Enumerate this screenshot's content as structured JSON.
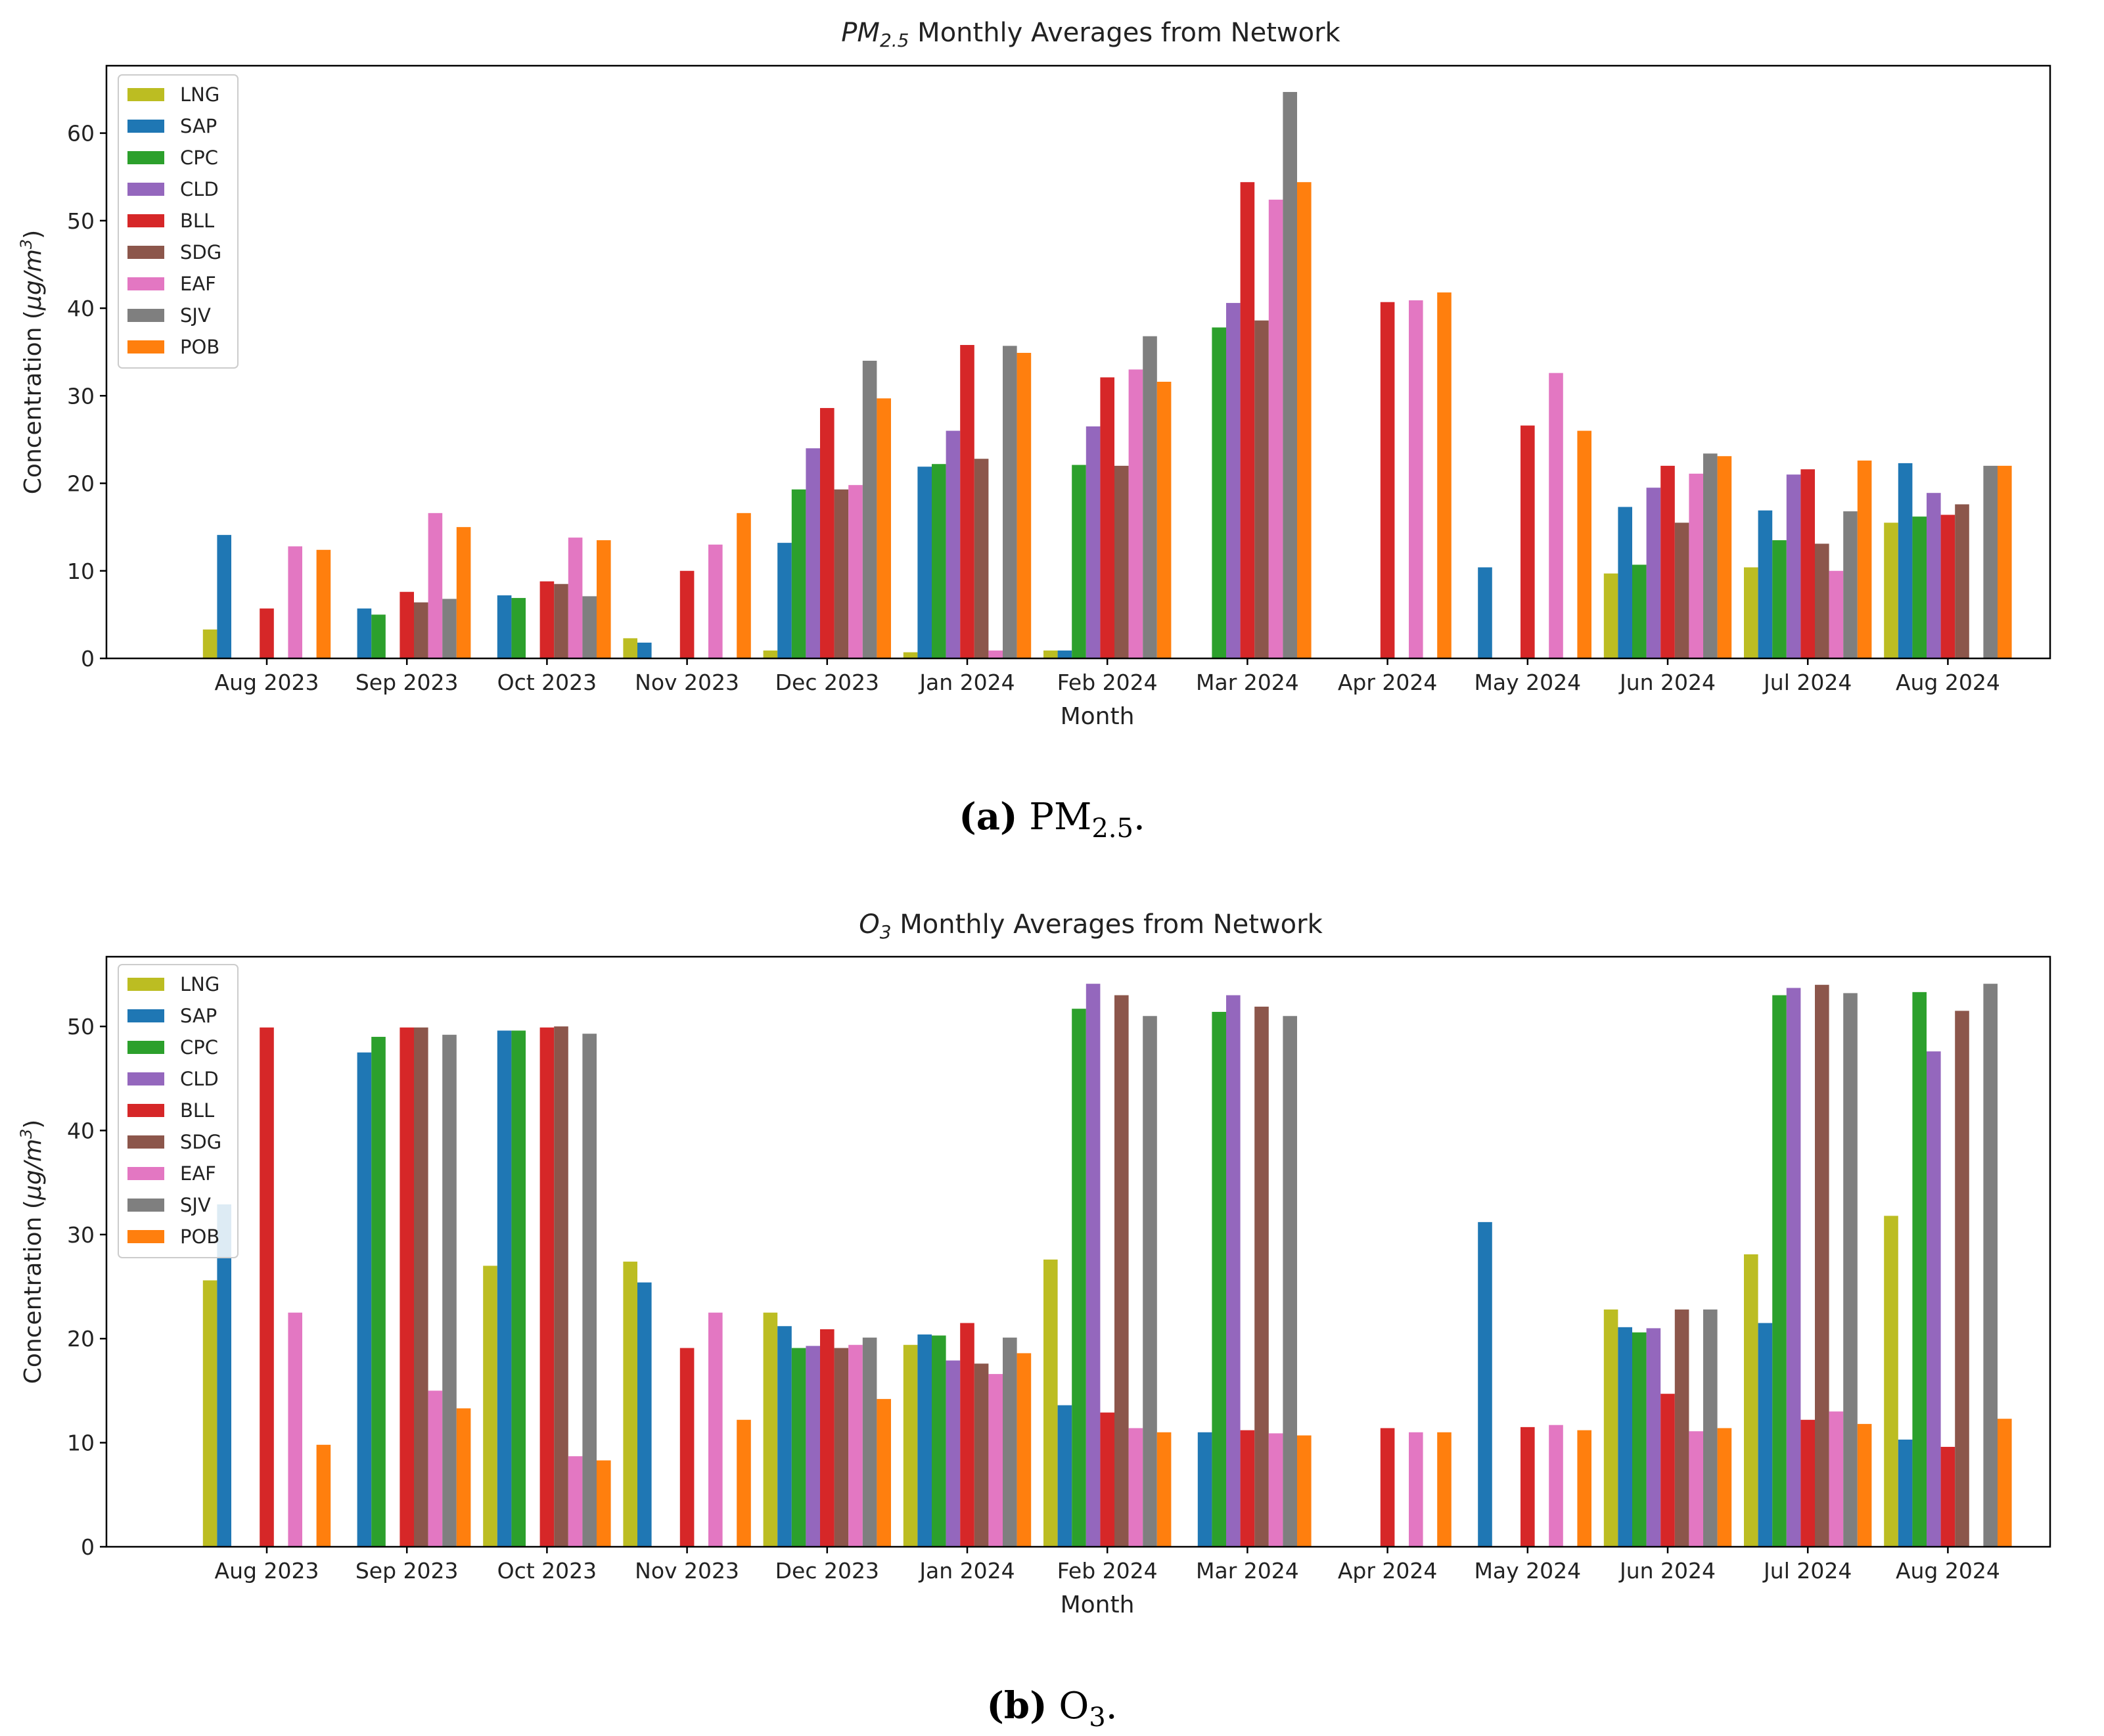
{
  "colors": {
    "LNG": "#bcbd22",
    "SAP": "#1f77b4",
    "CPC": "#2ca02c",
    "CLD": "#9467bd",
    "BLL": "#d62728",
    "SDG": "#8c564b",
    "EAF": "#e377c2",
    "SJV": "#7f7f7f",
    "POB": "#ff7f0e"
  },
  "chart_data": [
    {
      "type": "bar",
      "title_main": "PM",
      "title_sub": "2.5",
      "title_rest": " Monthly Averages from Network",
      "xlabel": "Month",
      "ylabel_main": "Concentration (",
      "ylabel_mu": "μg/m",
      "ylabel_exp": "3",
      "ylabel_end": ")",
      "ylim": [
        0,
        67.7
      ],
      "yticks": [
        0,
        10,
        20,
        30,
        40,
        50,
        60
      ],
      "legend_position": "top-left",
      "caption_letter": "(a)",
      "caption_text": " PM",
      "caption_sub": "2.5",
      "caption_end": ".",
      "categories": [
        "Aug 2023",
        "Sep 2023",
        "Oct 2023",
        "Nov 2023",
        "Dec 2023",
        "Jan 2024",
        "Feb 2024",
        "Mar 2024",
        "Apr 2024",
        "May 2024",
        "Jun 2024",
        "Jul 2024",
        "Aug 2024"
      ],
      "series": [
        {
          "name": "LNG",
          "values": [
            3.3,
            null,
            null,
            2.3,
            0.9,
            0.7,
            0.9,
            null,
            null,
            null,
            9.7,
            10.4,
            15.5
          ]
        },
        {
          "name": "SAP",
          "values": [
            14.1,
            5.7,
            7.2,
            1.8,
            13.2,
            21.9,
            0.9,
            null,
            null,
            10.4,
            17.3,
            16.9,
            22.3
          ]
        },
        {
          "name": "CPC",
          "values": [
            null,
            5.0,
            6.9,
            null,
            19.3,
            22.2,
            22.1,
            37.8,
            null,
            null,
            10.7,
            13.5,
            16.2
          ]
        },
        {
          "name": "CLD",
          "values": [
            null,
            null,
            null,
            null,
            24.0,
            26.0,
            26.5,
            40.6,
            null,
            null,
            19.5,
            21.0,
            18.9
          ]
        },
        {
          "name": "BLL",
          "values": [
            5.7,
            7.6,
            8.8,
            10.0,
            28.6,
            35.8,
            32.1,
            54.4,
            40.7,
            26.6,
            22.0,
            21.6,
            16.4
          ]
        },
        {
          "name": "SDG",
          "values": [
            null,
            6.4,
            8.5,
            null,
            19.3,
            22.8,
            22.0,
            38.6,
            null,
            null,
            15.5,
            13.1,
            17.6
          ]
        },
        {
          "name": "EAF",
          "values": [
            12.8,
            16.6,
            13.8,
            13.0,
            19.8,
            0.9,
            33.0,
            52.4,
            40.9,
            32.6,
            21.1,
            10.0,
            null
          ]
        },
        {
          "name": "SJV",
          "values": [
            null,
            6.8,
            7.1,
            null,
            34.0,
            35.7,
            36.8,
            64.7,
            null,
            null,
            23.4,
            16.8,
            22.0
          ]
        },
        {
          "name": "POB",
          "values": [
            12.4,
            15.0,
            13.5,
            16.6,
            29.7,
            34.9,
            31.6,
            54.4,
            41.8,
            26.0,
            23.1,
            22.6,
            22.0
          ]
        }
      ]
    },
    {
      "type": "bar",
      "title_main": "O",
      "title_sub": "3",
      "title_rest": " Monthly Averages from Network",
      "xlabel": "Month",
      "ylabel_main": "Concentration (",
      "ylabel_mu": "μg/m",
      "ylabel_exp": "3",
      "ylabel_end": ")",
      "ylim": [
        0,
        56.7
      ],
      "yticks": [
        0,
        10,
        20,
        30,
        40,
        50
      ],
      "legend_position": "top-left",
      "caption_letter": "(b)",
      "caption_text": " O",
      "caption_sub": "3",
      "caption_end": ".",
      "categories": [
        "Aug 2023",
        "Sep 2023",
        "Oct 2023",
        "Nov 2023",
        "Dec 2023",
        "Jan 2024",
        "Feb 2024",
        "Mar 2024",
        "Apr 2024",
        "May 2024",
        "Jun 2024",
        "Jul 2024",
        "Aug 2024"
      ],
      "series": [
        {
          "name": "LNG",
          "values": [
            25.6,
            null,
            27.0,
            27.4,
            22.5,
            19.4,
            27.6,
            null,
            null,
            null,
            22.8,
            28.1,
            31.8
          ]
        },
        {
          "name": "SAP",
          "values": [
            32.9,
            47.5,
            49.6,
            25.4,
            21.2,
            20.4,
            13.6,
            11.0,
            null,
            31.2,
            21.1,
            21.5,
            10.3
          ]
        },
        {
          "name": "CPC",
          "values": [
            null,
            49.0,
            49.6,
            null,
            19.1,
            20.3,
            51.7,
            51.4,
            null,
            null,
            20.6,
            53.0,
            53.3
          ]
        },
        {
          "name": "CLD",
          "values": [
            null,
            null,
            null,
            null,
            19.3,
            17.9,
            54.1,
            53.0,
            null,
            null,
            21.0,
            53.7,
            47.6
          ]
        },
        {
          "name": "BLL",
          "values": [
            49.9,
            49.9,
            49.9,
            19.1,
            20.9,
            21.5,
            12.9,
            11.2,
            11.4,
            11.5,
            14.7,
            12.2,
            9.6
          ]
        },
        {
          "name": "SDG",
          "values": [
            null,
            49.9,
            50.0,
            null,
            19.1,
            17.6,
            53.0,
            51.9,
            null,
            null,
            22.8,
            54.0,
            51.5
          ]
        },
        {
          "name": "EAF",
          "values": [
            22.5,
            15.0,
            8.7,
            22.5,
            19.4,
            16.6,
            11.4,
            10.9,
            11.0,
            11.7,
            11.1,
            13.0,
            null
          ]
        },
        {
          "name": "SJV",
          "values": [
            null,
            49.2,
            49.3,
            null,
            20.1,
            20.1,
            51.0,
            51.0,
            null,
            null,
            22.8,
            53.2,
            54.1
          ]
        },
        {
          "name": "POB",
          "values": [
            9.8,
            13.3,
            8.3,
            12.2,
            14.2,
            18.6,
            11.0,
            10.7,
            11.0,
            11.2,
            11.4,
            11.8,
            12.3
          ]
        }
      ]
    }
  ]
}
